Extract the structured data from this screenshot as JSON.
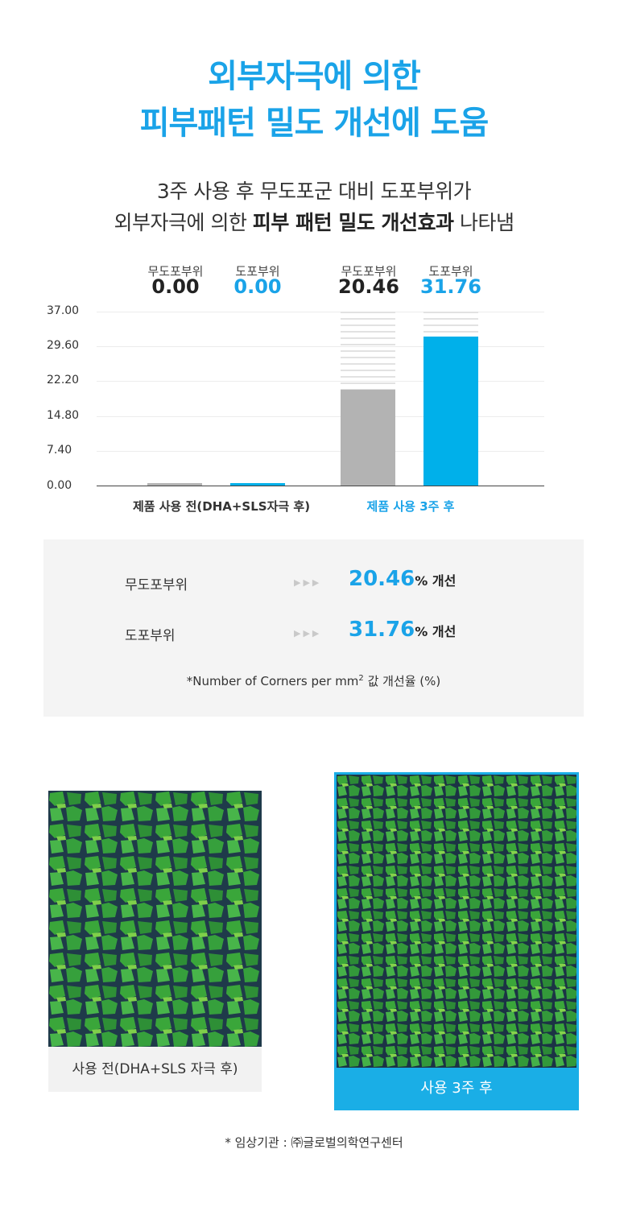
{
  "title": {
    "line1": "외부자극에 의한",
    "line2": "피부패턴 밀도 개선에 도움"
  },
  "subtitle": {
    "line1": "3주 사용 후 무도포군 대비 도포부위가",
    "line2_pre": "외부자극에 의한 ",
    "line2_bold": "피부 패턴 밀도 개선효과",
    "line2_post": " 나타냄"
  },
  "colors": {
    "accent": "#1aa3e8",
    "grey_bar": "#b3b3b3",
    "after_frame": "#1aaee6"
  },
  "chart_data": {
    "type": "bar",
    "categories": [
      "제품 사용 전(DHA+SLS자극 후)",
      "제품 사용 3주 후"
    ],
    "series": [
      {
        "name": "무도포부위",
        "values": [
          0.0,
          20.46
        ],
        "color": "#b3b3b3"
      },
      {
        "name": "도포부위",
        "values": [
          0.0,
          31.76
        ],
        "color": "#00b0ea"
      }
    ],
    "value_labels": [
      {
        "label": "무도포부위",
        "value": "0.00"
      },
      {
        "label": "도포부위",
        "value": "0.00"
      },
      {
        "label": "무도포부위",
        "value": "20.46"
      },
      {
        "label": "도포부위",
        "value": "31.76"
      }
    ],
    "yticks": [
      "37.00",
      "29.60",
      "22.20",
      "14.80",
      "7.40",
      "0.00"
    ],
    "ylim": [
      0,
      37
    ],
    "grid": true
  },
  "summary": {
    "rows": [
      {
        "label": "무도포부위",
        "arrows": "▶▶▶",
        "value": "20.46",
        "unit": "% 개선"
      },
      {
        "label": "도포부위",
        "arrows": "▶▶▶",
        "value": "31.76",
        "unit": "% 개선"
      }
    ],
    "note_pre": "*Number of Corners per mm",
    "note_sup": "2",
    "note_post": " 값 개선율 (%)"
  },
  "images": {
    "before_caption": "사용 전(DHA+SLS 자극 후)",
    "after_caption": "사용 3주 후"
  },
  "footer": "* 임상기관 : ㈜글로벌의학연구센터"
}
